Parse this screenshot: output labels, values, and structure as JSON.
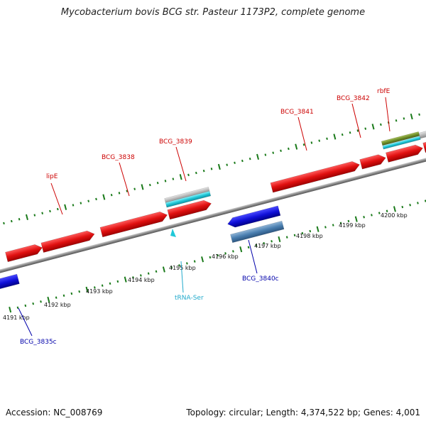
{
  "title": "Mycobacterium bovis BCG str. Pasteur 1173P2, complete genome",
  "footer": {
    "accession": "Accession: NC_008769",
    "summary": "Topology: circular; Length: 4,374,522 bp; Genes: 4,001"
  },
  "colors": {
    "forward_gene": "#e01010",
    "reverse_gene": "#1010d8",
    "rna": "#20c8d8",
    "feature_gray": "#b8b8b8",
    "feature_steel": "#4a7fb0",
    "feature_olive": "#6f8f2a",
    "tick": "#1a7a1a",
    "backbone": "#888888",
    "label_forward": "#cc0000",
    "label_reverse": "#0000aa",
    "label_rna": "#22aacc"
  },
  "scale_labels": [
    "4191 kbp",
    "4192 kbp",
    "4193 kbp",
    "4194 kbp",
    "4195 kbp",
    "4196 kbp",
    "4197 kbp",
    "4198 kbp",
    "4199 kbp",
    "4200 kbp"
  ],
  "gene_labels": [
    {
      "text": "lipE",
      "kind": "forward"
    },
    {
      "text": "BCG_3838",
      "kind": "forward"
    },
    {
      "text": "BCG_3839",
      "kind": "forward"
    },
    {
      "text": "BCG_3841",
      "kind": "forward"
    },
    {
      "text": "BCG_3842",
      "kind": "forward"
    },
    {
      "text": "rbfE",
      "kind": "forward"
    },
    {
      "text": "tRNA-Ser",
      "kind": "rna"
    },
    {
      "text": "BCG_3840c",
      "kind": "reverse"
    },
    {
      "text": "BCG_3835c",
      "kind": "reverse"
    }
  ]
}
